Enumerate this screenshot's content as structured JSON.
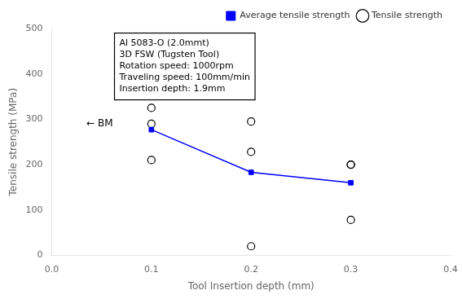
{
  "chart_data": {
    "type": "scatter",
    "xlabel": "Tool Insertion depth (mm)",
    "ylabel": "Tensile strength (MPa)",
    "xlim": [
      0.0,
      0.4
    ],
    "ylim": [
      0,
      500
    ],
    "xticks": [
      {
        "value": 0.0,
        "label": "0.0"
      },
      0.1,
      0.2,
      0.3,
      0.4
    ],
    "yticks": [
      0,
      100,
      200,
      300,
      400,
      500
    ],
    "grid": false,
    "legend": "upper right",
    "series": [
      {
        "name": "Tensile strength",
        "type": "scatter",
        "color": "black",
        "marker": "circle",
        "x": [
          0.1,
          0.1,
          0.1,
          0.2,
          0.2,
          0.2,
          0.3,
          0.3,
          0.3
        ],
        "values": [
          325,
          290,
          210,
          295,
          228,
          20,
          200,
          78,
          200
        ]
      },
      {
        "name": "Average tensile strength",
        "type": "line",
        "color": "blue",
        "marker": "square",
        "x": [
          0.1,
          0.2,
          0.3
        ],
        "values": [
          277,
          183,
          160
        ]
      }
    ],
    "annotations": [
      {
        "text": "← BM",
        "x": 0.035,
        "y": 290
      },
      {
        "text": "Al 5083-O (2.0mmt)\n3D FSW (Tugsten Tool)\nRotation speed: 1000rpm\nTraveling speed: 100mm/min\nInsertion depth: 1.9mm",
        "x": 0.063,
        "y": 490,
        "box": true
      }
    ]
  }
}
